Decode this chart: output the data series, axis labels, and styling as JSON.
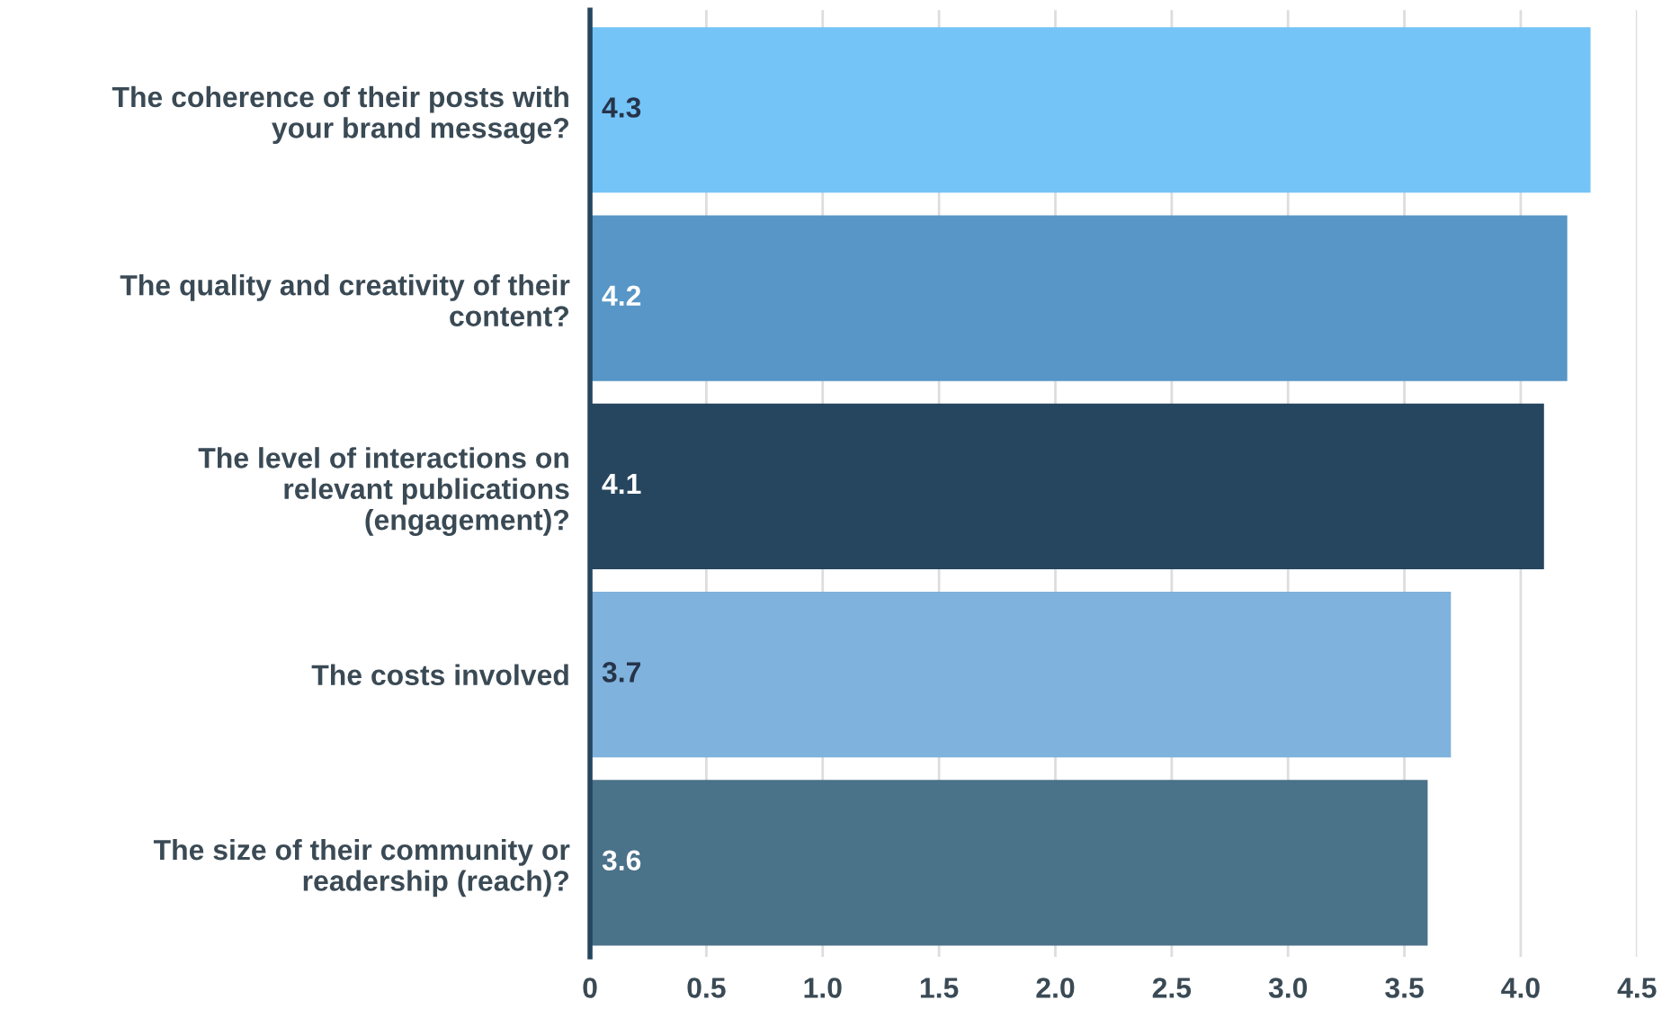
{
  "chart_data": {
    "type": "bar",
    "orientation": "horizontal",
    "categories": [
      "The coherence of their posts with\nyour brand message?",
      "The quality and creativity of their\ncontent?",
      "The level of interactions on\nrelevant publications\n(engagement)?",
      "The costs involved",
      "The size of their community or\nreadership (reach)?"
    ],
    "values": [
      4.3,
      4.2,
      4.1,
      3.7,
      3.6
    ],
    "colors": [
      "#74c4f7",
      "#5796c6",
      "#26465f",
      "#7fb2dc",
      "#4a7289"
    ],
    "xlim": [
      0,
      4.5
    ],
    "xticks": [
      0,
      0.5,
      {
        "value": 1,
        "label": "1.0"
      },
      1.5,
      {
        "value": 2,
        "label": "2.0"
      },
      2.5,
      {
        "value": 3,
        "label": "3.0"
      },
      3.5,
      {
        "value": 4,
        "label": "4.0"
      },
      4.5
    ],
    "grid": "x",
    "data_labels": true
  }
}
